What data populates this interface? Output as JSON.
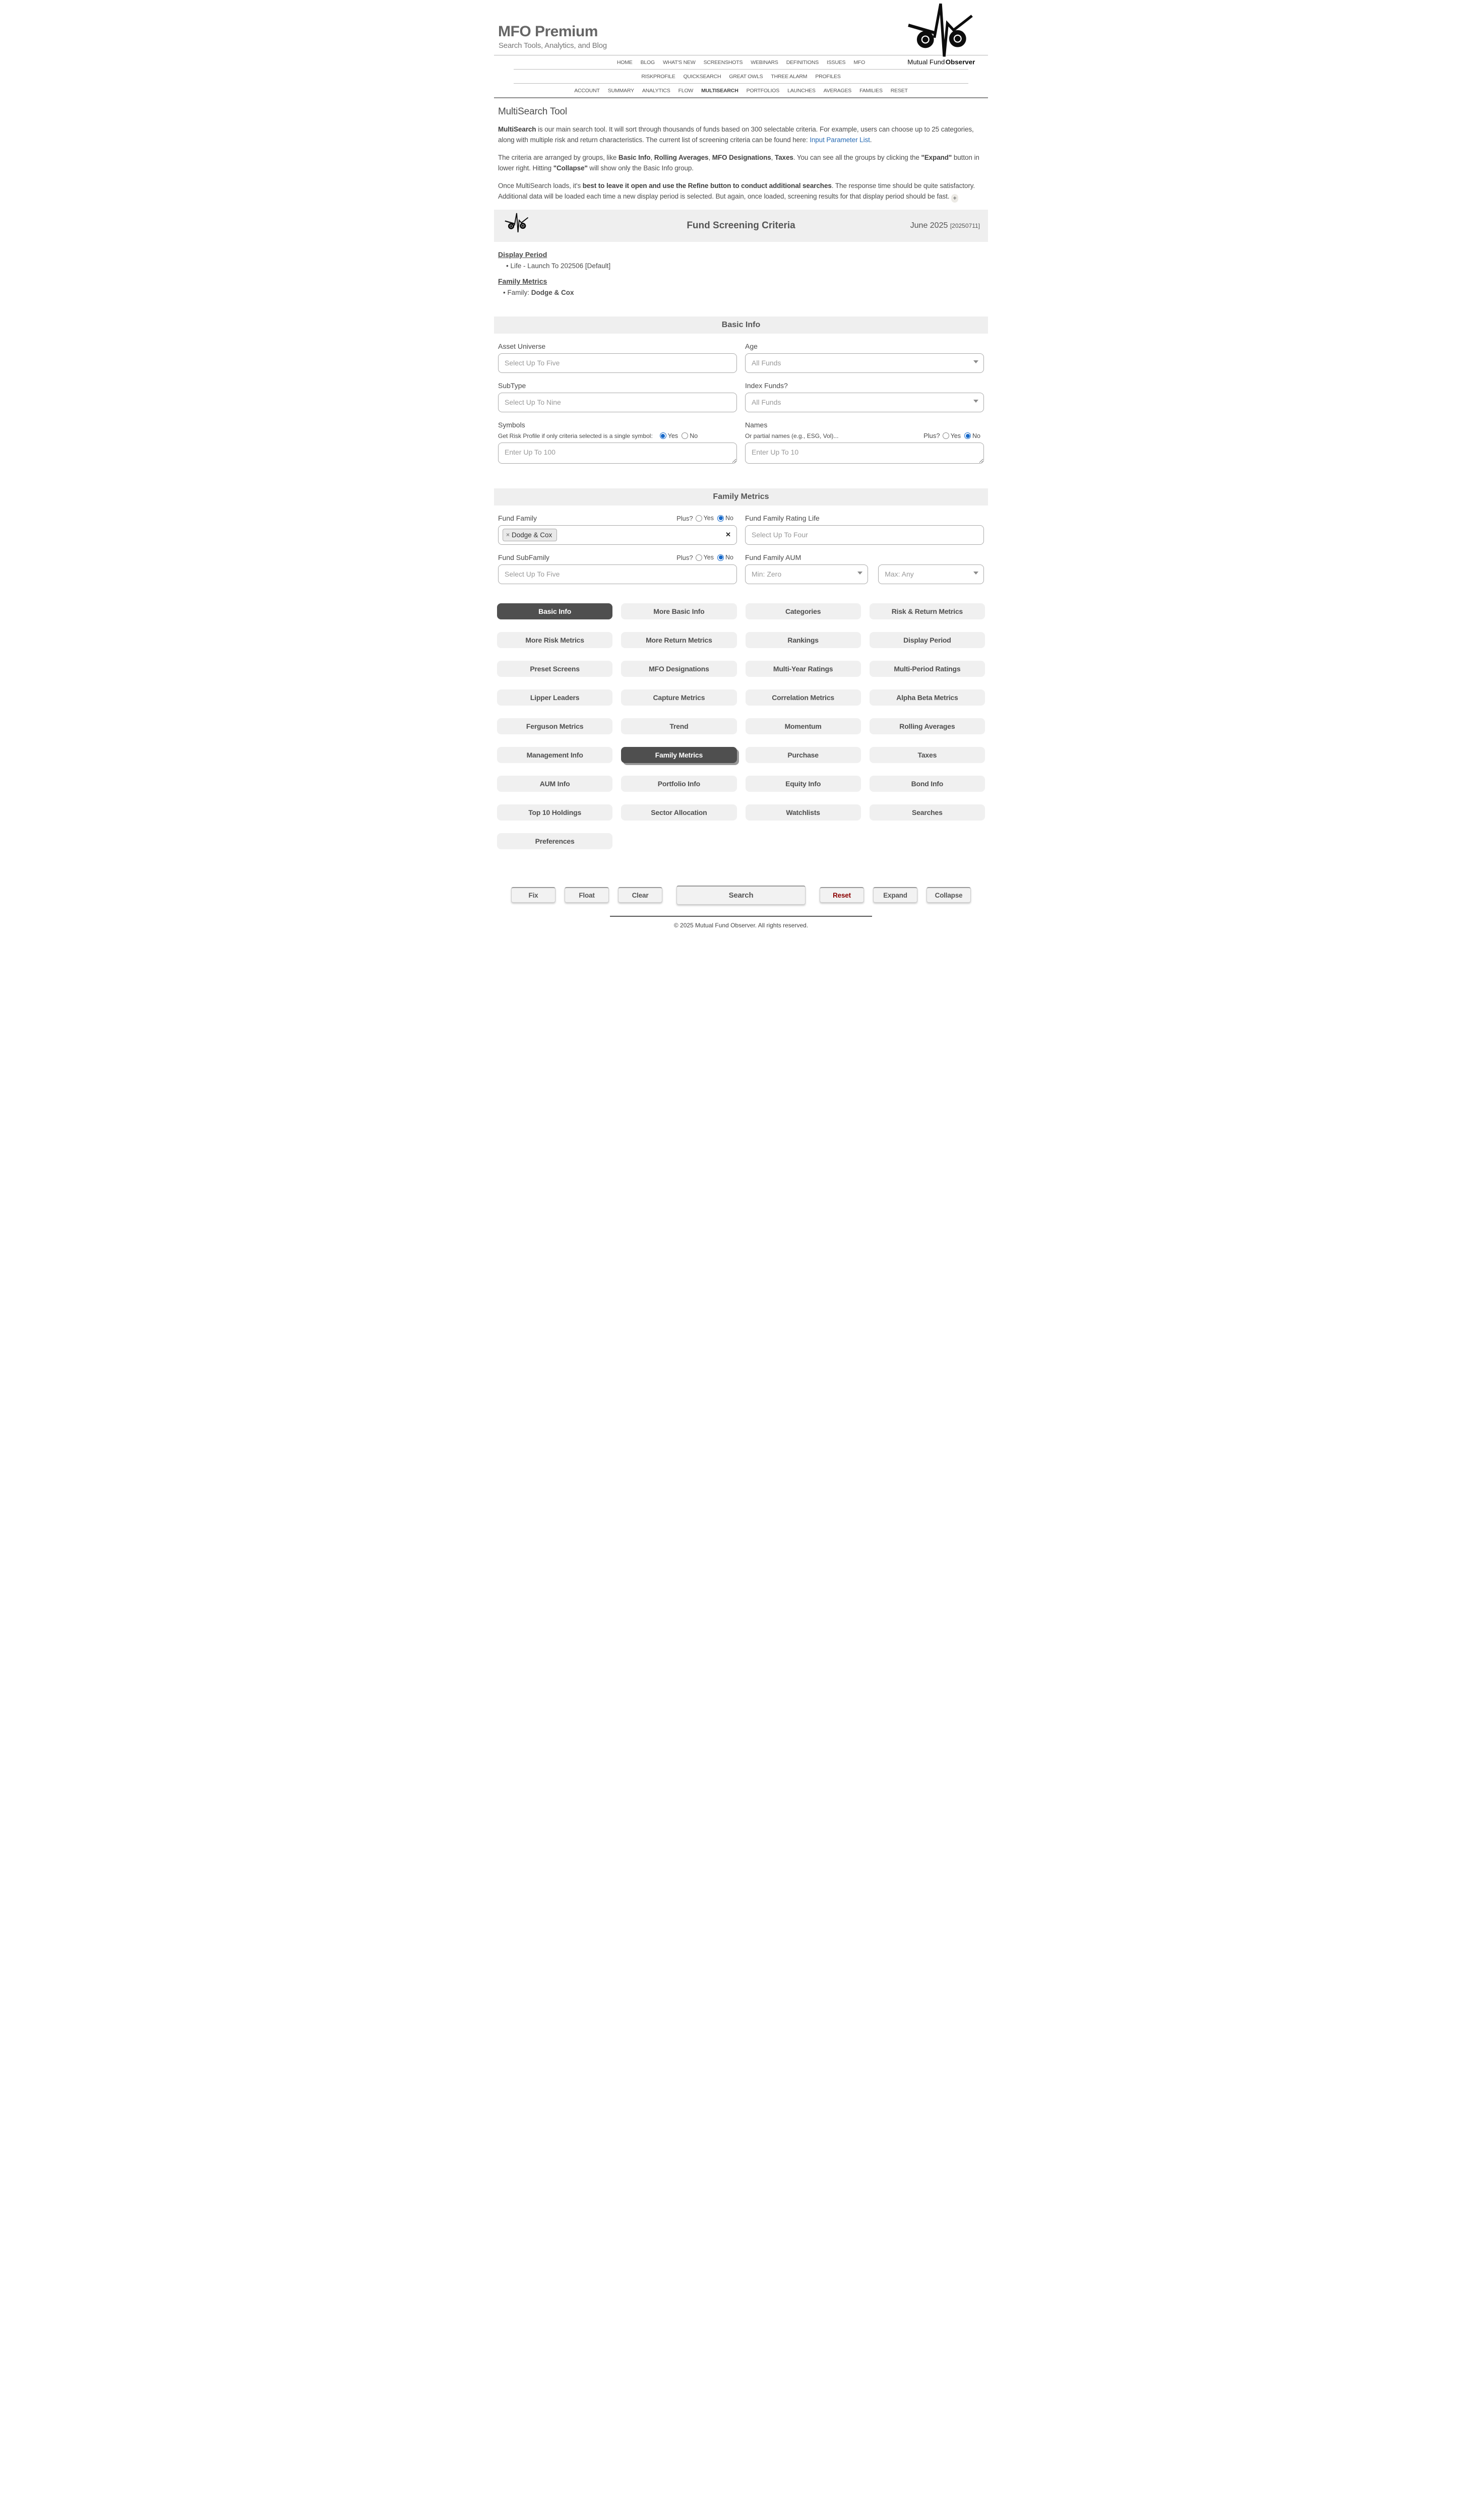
{
  "colors": {
    "link_blue": "#2a6db5",
    "button_dark": "#4f4f4f",
    "reset_red": "#8b0000",
    "radio_blue": "#1668c9",
    "bar_gray": "#efefef"
  },
  "header": {
    "title": "MFO Premium",
    "tagline": "Search Tools, Analytics, and Blog",
    "logo_word1": "Mutual Fund",
    "logo_word2": "Observer"
  },
  "nav": {
    "active": "MULTISEARCH",
    "row1": [
      "HOME",
      "BLOG",
      "WHAT'S NEW",
      "SCREENSHOTS",
      "WEBINARS",
      "DEFINITIONS",
      "ISSUES",
      "MFO"
    ],
    "row2": [
      "RISKPROFILE",
      "QUICKSEARCH",
      "GREAT OWLS",
      "THREE ALARM",
      "PROFILES"
    ],
    "row3": [
      "ACCOUNT",
      "SUMMARY",
      "ANALYTICS",
      "FLOW",
      "MULTISEARCH",
      "PORTFOLIOS",
      "LAUNCHES",
      "AVERAGES",
      "FAMILIES",
      "RESET"
    ]
  },
  "intro": {
    "page_title": "MultiSearch Tool",
    "paragraphs": [
      [
        {
          "t": "MultiSearch",
          "b": true
        },
        {
          "t": " is our main search tool. It will sort through thousands of funds based on 300 selectable criteria. For example, users can choose up to 25 categories, along with multiple risk and return characteristics. The current list of screening criteria can be found here: "
        },
        {
          "t": "Input Parameter List",
          "link": true
        },
        {
          "t": "."
        }
      ],
      [
        {
          "t": "The criteria are arranged by groups, like "
        },
        {
          "t": "Basic Info",
          "b": true
        },
        {
          "t": ", "
        },
        {
          "t": "Rolling Averages",
          "b": true
        },
        {
          "t": ", "
        },
        {
          "t": "MFO Designations",
          "b": true
        },
        {
          "t": ", "
        },
        {
          "t": "Taxes",
          "b": true
        },
        {
          "t": ". You can see all the groups by clicking the "
        },
        {
          "t": "\"Expand\"",
          "b": true
        },
        {
          "t": " button in lower right. Hitting "
        },
        {
          "t": "\"Collapse\"",
          "b": true
        },
        {
          "t": " will show only the Basic Info group."
        }
      ],
      [
        {
          "t": "Once MultiSearch loads, it's "
        },
        {
          "t": "best to leave it open and use the Refine button to conduct additional searches",
          "b": true
        },
        {
          "t": ". The response time should be quite satisfactory. Additional data will be loaded each time a new display period is selected. But again, once loaded, screening results for that display period should be fast. "
        },
        {
          "t": "+",
          "icon": "plus-circle-icon"
        }
      ]
    ]
  },
  "criteria_bar": {
    "title": "Fund Screening Criteria",
    "period": "June 2025",
    "period_code": "[20250711]"
  },
  "summary": {
    "display_period": {
      "heading": "Display Period",
      "item": "Life - Launch To 202506 [Default]"
    },
    "family_metrics": {
      "heading": "Family Metrics",
      "item_label": "Family: ",
      "item_value": "Dodge & Cox"
    }
  },
  "basic_info": {
    "title": "Basic Info",
    "asset_universe": {
      "label": "Asset Universe",
      "placeholder": "Select Up To Five"
    },
    "age": {
      "label": "Age",
      "value": "All Funds"
    },
    "subtype": {
      "label": "SubType",
      "placeholder": "Select Up To Nine"
    },
    "index_funds": {
      "label": "Index Funds?",
      "value": "All Funds"
    },
    "symbols": {
      "label": "Symbols",
      "helper": "Get Risk Profile if only criteria selected is a single symbol:",
      "yes": "Yes",
      "no": "No",
      "selected": "Yes",
      "placeholder": "Enter Up To 100"
    },
    "names": {
      "label": "Names",
      "helper": "Or partial names (e.g., ESG, Vol)...",
      "plus": "Plus?",
      "yes": "Yes",
      "no": "No",
      "selected": "No",
      "placeholder": "Enter Up To 10"
    }
  },
  "family_metrics": {
    "title": "Family Metrics",
    "fund_family": {
      "label": "Fund Family",
      "plus": "Plus?",
      "yes": "Yes",
      "no": "No",
      "selected": "No",
      "tag": "Dodge & Cox",
      "tag_remove": "×",
      "clear": "✕"
    },
    "rating_life": {
      "label": "Fund Family Rating Life",
      "placeholder": "Select Up To Four"
    },
    "subfamily": {
      "label": "Fund SubFamily",
      "plus": "Plus?",
      "yes": "Yes",
      "no": "No",
      "selected": "No",
      "placeholder": "Select Up To Five"
    },
    "aum": {
      "label": "Fund Family AUM",
      "min": "Min: Zero",
      "max": "Max: Any"
    }
  },
  "group_buttons": [
    {
      "label": "Basic Info",
      "selected": true
    },
    {
      "label": "More Basic Info"
    },
    {
      "label": "Categories"
    },
    {
      "label": "Risk & Return Metrics"
    },
    {
      "label": "More Risk Metrics"
    },
    {
      "label": "More Return Metrics"
    },
    {
      "label": "Rankings"
    },
    {
      "label": "Display Period"
    },
    {
      "label": "Preset Screens"
    },
    {
      "label": "MFO Designations"
    },
    {
      "label": "Multi-Year Ratings"
    },
    {
      "label": "Multi-Period Ratings"
    },
    {
      "label": "Lipper Leaders"
    },
    {
      "label": "Capture Metrics"
    },
    {
      "label": "Correlation Metrics"
    },
    {
      "label": "Alpha Beta Metrics"
    },
    {
      "label": "Ferguson Metrics"
    },
    {
      "label": "Trend"
    },
    {
      "label": "Momentum"
    },
    {
      "label": "Rolling Averages"
    },
    {
      "label": "Management Info"
    },
    {
      "label": "Family Metrics",
      "selected": true,
      "shadow": true
    },
    {
      "label": "Purchase"
    },
    {
      "label": "Taxes"
    },
    {
      "label": "AUM Info"
    },
    {
      "label": "Portfolio Info"
    },
    {
      "label": "Equity Info"
    },
    {
      "label": "Bond Info"
    },
    {
      "label": "Top 10 Holdings"
    },
    {
      "label": "Sector Allocation"
    },
    {
      "label": "Watchlists"
    },
    {
      "label": "Searches"
    },
    {
      "label": "Preferences"
    }
  ],
  "actions": [
    {
      "label": "Fix",
      "slot": "left"
    },
    {
      "label": "Float",
      "slot": "left"
    },
    {
      "label": "Clear",
      "slot": "left"
    },
    {
      "label": "Search",
      "slot": "center",
      "wide": true
    },
    {
      "label": "Reset",
      "slot": "right",
      "danger": true
    },
    {
      "label": "Expand",
      "slot": "right"
    },
    {
      "label": "Collapse",
      "slot": "right"
    }
  ],
  "footer": {
    "text": "© 2025 Mutual Fund Observer. All rights reserved."
  }
}
